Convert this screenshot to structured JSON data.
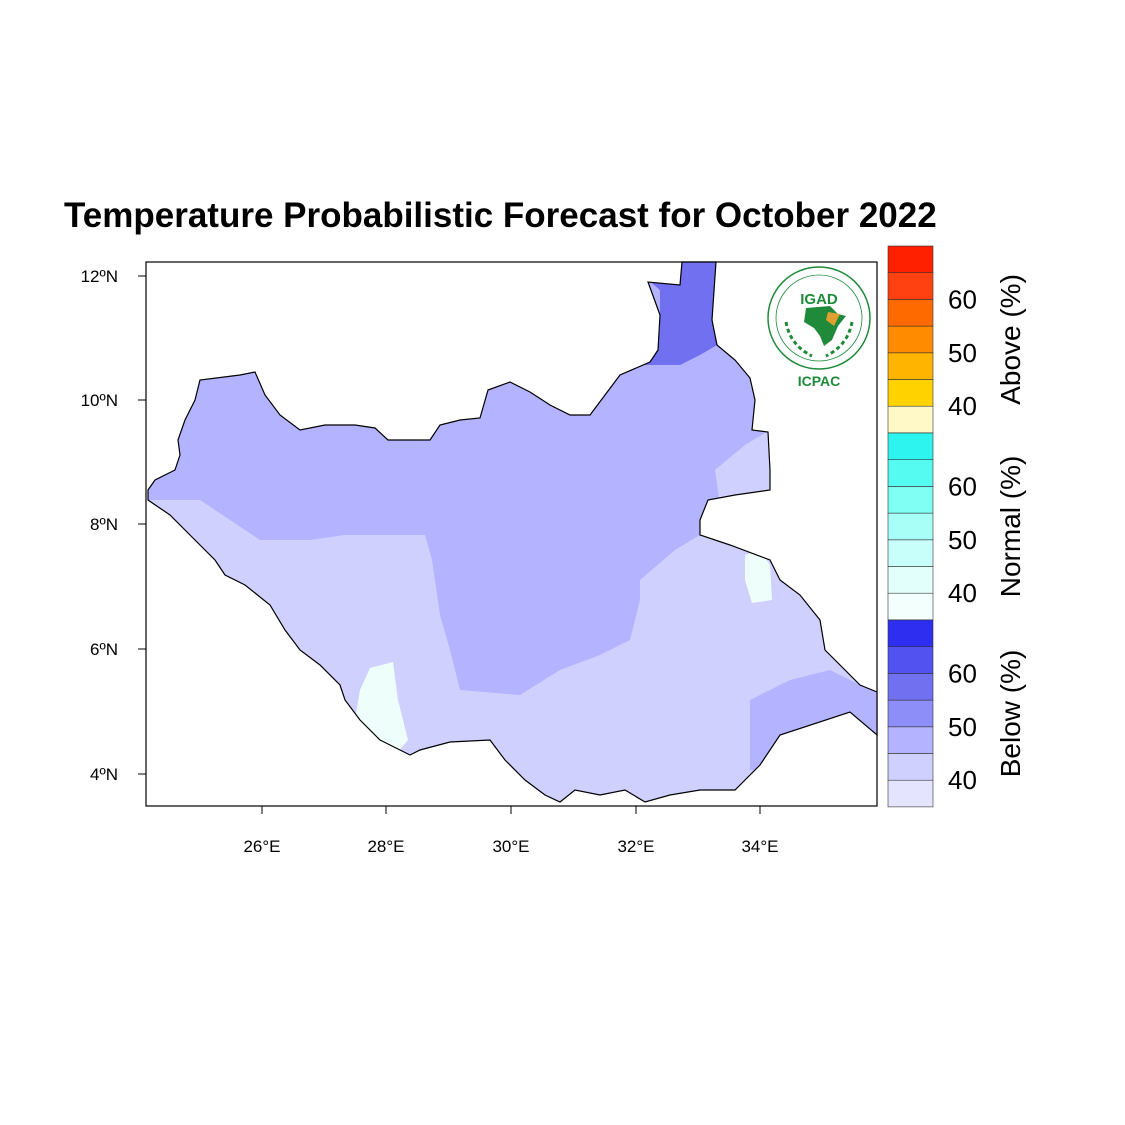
{
  "title": "Temperature Probabilistic Forecast for October 2022",
  "logo": {
    "top_text": "IGAD",
    "bottom_text": "ICPAC",
    "green": "#1e8a3a",
    "gold": "#e0a030"
  },
  "map": {
    "region": "South Sudan",
    "lat_ticks": [
      "12ºN",
      "10ºN",
      "8ºN",
      "6ºN",
      "4ºN"
    ],
    "lon_ticks": [
      "26°E",
      "28°E",
      "30°E",
      "32°E",
      "34°E"
    ],
    "lat_range": [
      3.5,
      12.2
    ],
    "lon_range": [
      24.2,
      35.9
    ],
    "zones": [
      {
        "category": "Below",
        "level": "40-45",
        "color": "#b3b3ff"
      },
      {
        "category": "Below",
        "level": "35-40",
        "color": "#d0d0ff"
      },
      {
        "category": "Below",
        "level": "50-55",
        "color": "#7070f0"
      },
      {
        "category": "Normal",
        "level": "35-40",
        "color": "#eefffb"
      }
    ]
  },
  "colorbar": {
    "groups": [
      {
        "label": "Above (%)",
        "ticks": [
          "60",
          "50",
          "40"
        ],
        "colors": [
          "#fff9c8",
          "#ffd200",
          "#ffb400",
          "#ff8c00",
          "#ff6a00",
          "#ff4010",
          "#ff2000"
        ]
      },
      {
        "label": "Normal (%)",
        "ticks": [
          "60",
          "50",
          "40"
        ],
        "colors": [
          "#f3fffc",
          "#e2fffb",
          "#c8fffa",
          "#a8fff8",
          "#80fff5",
          "#55fbf0",
          "#2ef4f0"
        ]
      },
      {
        "label": "Below (%)",
        "ticks": [
          "60",
          "50",
          "40"
        ],
        "colors": [
          "#e4e4ff",
          "#d0d0ff",
          "#b3b3ff",
          "#8e8ef8",
          "#7070f0",
          "#5252f0",
          "#2e2ef0"
        ]
      }
    ]
  }
}
